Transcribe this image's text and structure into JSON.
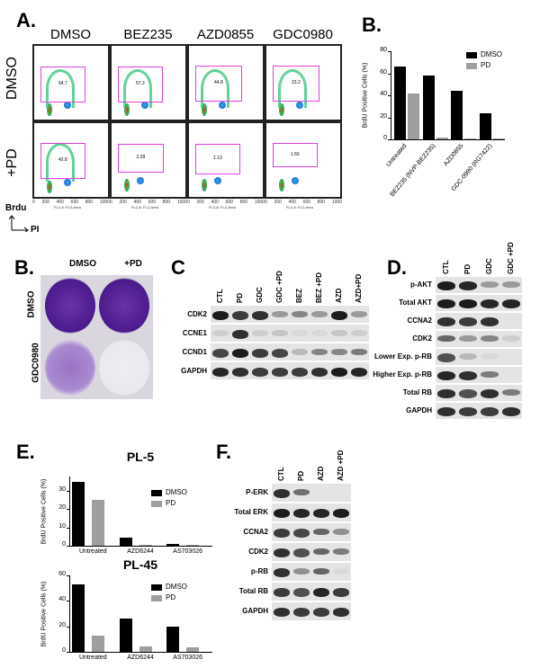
{
  "panelA": {
    "label": "A.",
    "columns": [
      "DMSO",
      "BEZ235",
      "AZD0855",
      "GDC0980"
    ],
    "rows": [
      "DMSO",
      "+PD"
    ],
    "gate_values": [
      [
        "64.7",
        "57.2",
        "44.8",
        "23.2"
      ],
      [
        "42.8",
        "2.28",
        "1.13",
        "1.66"
      ]
    ],
    "x_axis_label": "FL2-A: FL2-Area",
    "x_ticks": [
      "0",
      "200",
      "400",
      "600",
      "800",
      "1000"
    ],
    "axis_y": "Brdu",
    "axis_x": "PI"
  },
  "panelB_top": {
    "label": "B."
  },
  "panelB_plates": {
    "label": "B.",
    "columns": [
      "DMSO",
      "+PD"
    ],
    "rows": [
      "DMSO",
      "GDC0980"
    ]
  },
  "panelC": {
    "label": "C",
    "lanes": [
      "CTL",
      "PD",
      "GDC",
      "GDC +PD",
      "BEZ",
      "BEZ +PD",
      "AZD",
      "AZD+PD"
    ],
    "rows": [
      "CDK2",
      "CCNE1",
      "CCND1",
      "GAPDH"
    ]
  },
  "panelD": {
    "label": "D.",
    "lanes": [
      "CTL",
      "PD",
      "GDC",
      "GDC +PD"
    ],
    "rows": [
      "p-AKT",
      "Total AKT",
      "CCNA2",
      "CDK2",
      "Lower Exp. p-RB",
      "Higher Exp. p-RB",
      "Total RB",
      "GAPDH"
    ]
  },
  "panelE": {
    "label": "E."
  },
  "panelF": {
    "label": "F.",
    "lanes": [
      "CTL",
      "PD",
      "AZD",
      "AZD +PD"
    ],
    "rows": [
      "P-ERK",
      "Total ERK",
      "CCNA2",
      "CDK2",
      "p-RB",
      "Total RB",
      "GAPDH"
    ]
  },
  "chart_data": [
    {
      "id": "B",
      "type": "bar",
      "title": "",
      "ylabel": "BrdU Positive Cells (%)",
      "xlabel": "",
      "ylim": [
        0,
        80
      ],
      "yticks": [
        "0",
        "20",
        "40",
        "60",
        "80"
      ],
      "categories": [
        "Untreated",
        "BEZ235 (NVP-BEZ235)",
        "AZD0855",
        "GDC-0980 (RG7422)"
      ],
      "series": [
        {
          "name": "DMSO",
          "color": "#000000",
          "values": [
            66,
            58,
            44,
            24
          ]
        },
        {
          "name": "PD",
          "color": "#9e9e9e",
          "values": [
            42,
            2,
            1,
            1
          ]
        }
      ],
      "legend_position": "upper right",
      "grid": false
    },
    {
      "id": "E-PL5",
      "type": "bar",
      "title": "PL-5",
      "ylabel": "BrdU Positive Cells (%)",
      "xlabel": "",
      "ylim": [
        0,
        38
      ],
      "yticks": [
        "0",
        "10",
        "20",
        "30"
      ],
      "categories": [
        "Untreated",
        "AZD6244",
        "AS703026"
      ],
      "series": [
        {
          "name": "DMSO",
          "color": "#000000",
          "values": [
            35,
            4.5,
            0.8
          ]
        },
        {
          "name": "PD",
          "color": "#9e9e9e",
          "values": [
            25,
            0.5,
            0.2
          ]
        }
      ],
      "legend_position": "upper right",
      "grid": false
    },
    {
      "id": "E-PL45",
      "type": "bar",
      "title": "PL-45",
      "ylabel": "BrdU Positive Cells (%)",
      "xlabel": "",
      "ylim": [
        0,
        60
      ],
      "yticks": [
        "0",
        "20",
        "40",
        "60"
      ],
      "categories": [
        "Untreated",
        "AZD6244",
        "AS703026"
      ],
      "series": [
        {
          "name": "DMSO",
          "color": "#000000",
          "values": [
            53,
            26,
            20
          ]
        },
        {
          "name": "PD",
          "color": "#9e9e9e",
          "values": [
            13,
            4.5,
            3.5
          ]
        }
      ],
      "legend_position": "upper right",
      "grid": false
    }
  ]
}
